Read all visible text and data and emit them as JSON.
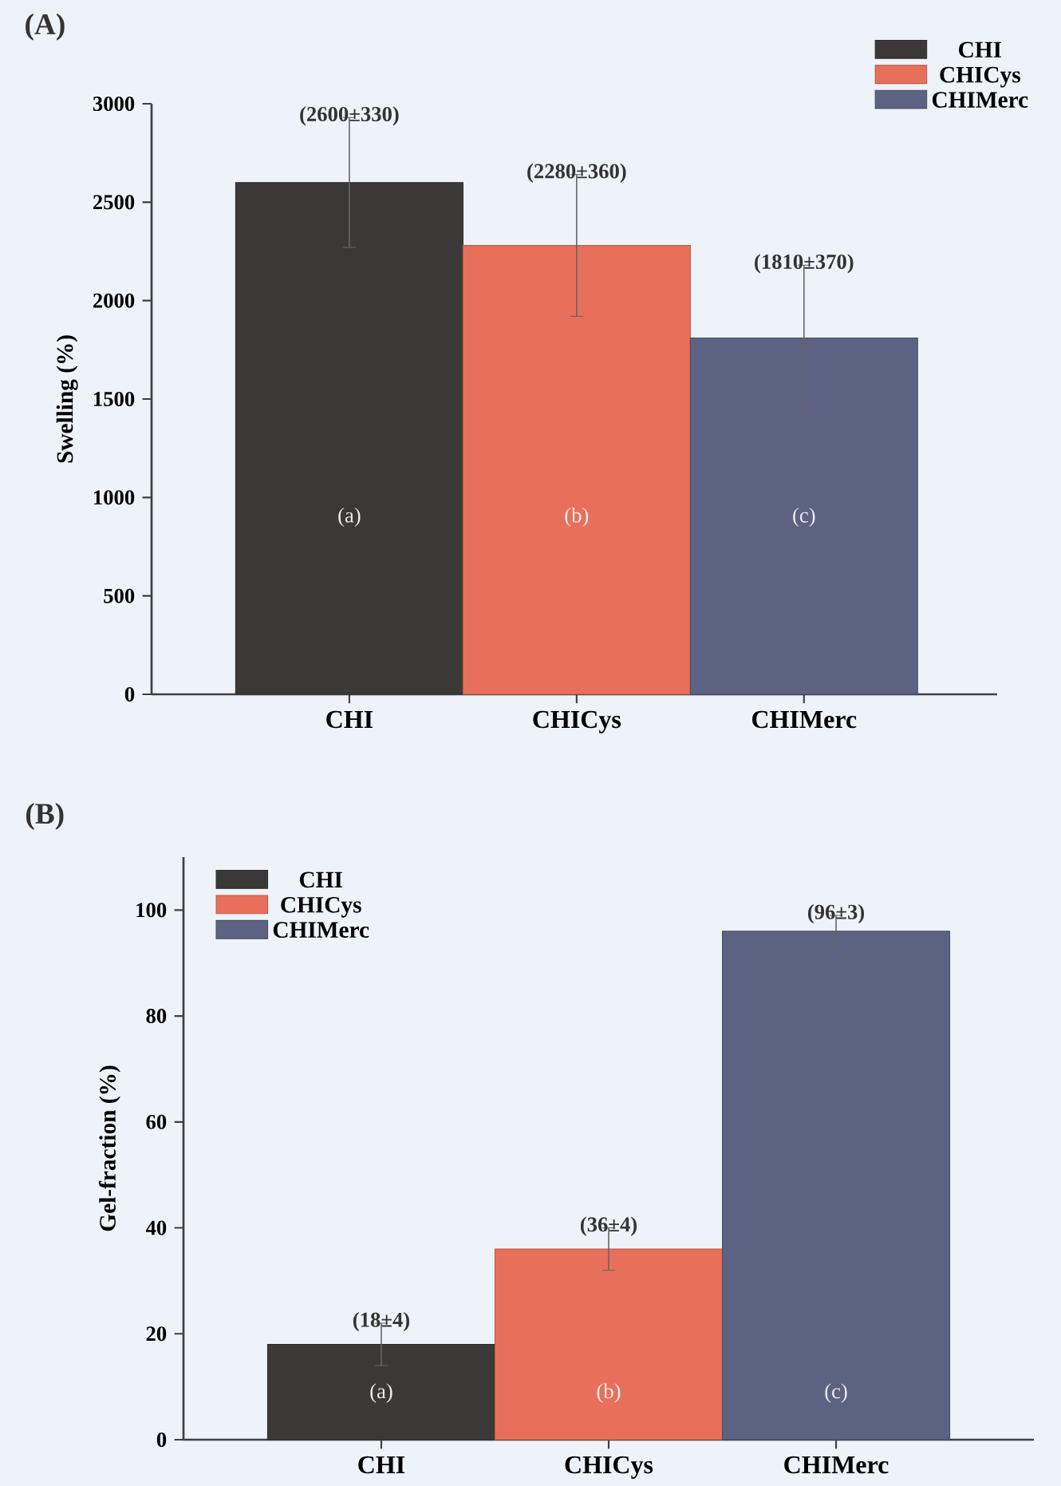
{
  "chart_data": [
    {
      "type": "bar",
      "title": "(A)",
      "ylabel": "Swelling (%)",
      "categories": [
        "CHI",
        "CHICys",
        "CHIMerc"
      ],
      "series": [
        {
          "name": "CHI",
          "color": "#3b3838",
          "values": [
            2600,
            null,
            null
          ],
          "errors": [
            330,
            null,
            null
          ],
          "value_labels": [
            "(2600±330)",
            null,
            null
          ]
        },
        {
          "name": "CHICys",
          "color": "#e8705b",
          "values": [
            null,
            2280,
            null
          ],
          "errors": [
            null,
            360,
            null
          ],
          "value_labels": [
            null,
            "(2280±360)",
            null
          ]
        },
        {
          "name": "CHIMerc",
          "color": "#5b6282",
          "values": [
            null,
            null,
            1810
          ],
          "errors": [
            null,
            null,
            370
          ],
          "value_labels": [
            null,
            null,
            "(1810±370)"
          ]
        }
      ],
      "ylim": [
        0,
        3000
      ],
      "yticks": [
        0,
        500,
        1000,
        1500,
        2000,
        2500,
        3000
      ],
      "legend": "top right",
      "annotations": [
        "(a)",
        "(b)",
        "(c)"
      ]
    },
    {
      "type": "bar",
      "title": "(B)",
      "ylabel": "Gel-fraction (%)",
      "categories": [
        "CHI",
        "CHICys",
        "CHIMerc"
      ],
      "series": [
        {
          "name": "CHI",
          "color": "#3b3838",
          "values": [
            18,
            null,
            null
          ],
          "errors": [
            4,
            null,
            null
          ],
          "value_labels": [
            "(18±4)",
            null,
            null
          ]
        },
        {
          "name": "CHICys",
          "color": "#e8705b",
          "values": [
            null,
            36,
            null
          ],
          "errors": [
            null,
            4,
            null
          ],
          "value_labels": [
            null,
            "(36±4)",
            null
          ]
        },
        {
          "name": "CHIMerc",
          "color": "#5b6282",
          "values": [
            null,
            null,
            96
          ],
          "errors": [
            null,
            null,
            3
          ],
          "value_labels": [
            null,
            null,
            "(96±3)"
          ]
        }
      ],
      "ylim": [
        0,
        110
      ],
      "yticks": [
        0,
        20,
        40,
        60,
        80,
        100
      ],
      "legend": "top left",
      "annotations": [
        "(a)",
        "(b)",
        "(c)"
      ]
    }
  ]
}
